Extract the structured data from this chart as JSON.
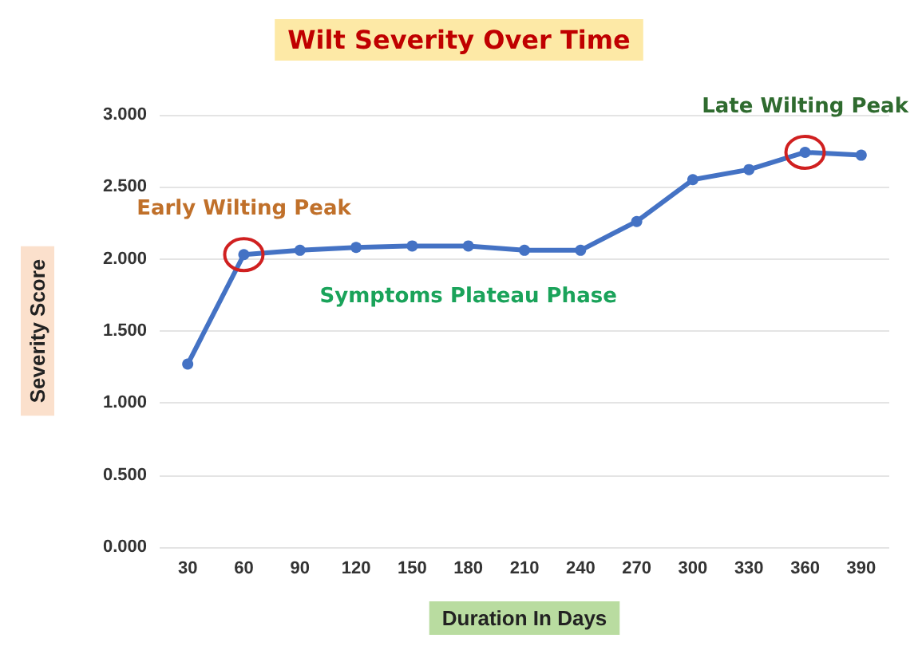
{
  "chart_data": {
    "type": "line",
    "title": "Wilt Severity Over Time",
    "xlabel": "Duration In Days",
    "ylabel": "Severity Score",
    "categories": [
      "30",
      "60",
      "90",
      "120",
      "150",
      "180",
      "210",
      "240",
      "270",
      "300",
      "330",
      "360",
      "390"
    ],
    "series": [
      {
        "color": "#4472c4",
        "values": [
          1.27,
          2.03,
          2.06,
          2.08,
          2.09,
          2.09,
          2.06,
          2.06,
          2.26,
          2.55,
          2.62,
          2.74,
          2.72
        ]
      }
    ],
    "ylim": [
      0,
      3
    ],
    "yticks": [
      {
        "value": 0,
        "label": "0.000"
      },
      {
        "value": 0.5,
        "label": "0.500"
      },
      {
        "value": 1,
        "label": "1.000"
      },
      {
        "value": 1.5,
        "label": "1.500"
      },
      {
        "value": 2,
        "label": "2.000"
      },
      {
        "value": 2.5,
        "label": "2.500"
      },
      {
        "value": 3,
        "label": "3.000"
      }
    ],
    "annotations": [
      {
        "text": "Early Wilting Peak",
        "x": "60",
        "y": 2.03
      },
      {
        "text": "Symptoms Plateau Phase"
      },
      {
        "text": "Late Wilting Peak",
        "x": "360",
        "y": 2.74
      }
    ],
    "grid": "y",
    "marker": "circle",
    "line_style": "solid"
  }
}
